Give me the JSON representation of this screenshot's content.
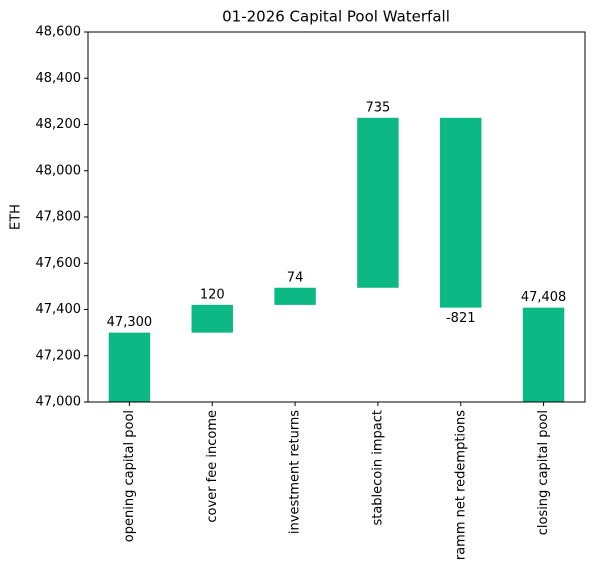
{
  "chart_data": {
    "type": "waterfall",
    "title": "01-2026 Capital Pool Waterfall",
    "y_label": "ETH",
    "categories": [
      "opening capital pool",
      "cover fee income",
      "investment returns",
      "stablecoin impact",
      "ramm net redemptions",
      "closing capital pool"
    ],
    "values": [
      47300,
      120,
      74,
      735,
      -821,
      47408
    ],
    "value_labels": [
      "47,300",
      "120",
      "74",
      "735",
      "-821",
      "47,408"
    ],
    "measures": [
      "absolute",
      "relative",
      "relative",
      "relative",
      "relative",
      "total"
    ],
    "color": "#0cb884",
    "ylim": [
      47000,
      48600
    ],
    "yticks": [
      {
        "value": 47000,
        "label": "47,000"
      },
      {
        "value": 47200,
        "label": "47,200"
      },
      {
        "value": 47400,
        "label": "47,400"
      },
      {
        "value": 47600,
        "label": "47,600"
      },
      {
        "value": 47800,
        "label": "47,800"
      },
      {
        "value": 48000,
        "label": "48,000"
      },
      {
        "value": 48200,
        "label": "48,200"
      },
      {
        "value": 48400,
        "label": "48,400"
      },
      {
        "value": 48600,
        "label": "48,600"
      }
    ],
    "grid": false
  }
}
